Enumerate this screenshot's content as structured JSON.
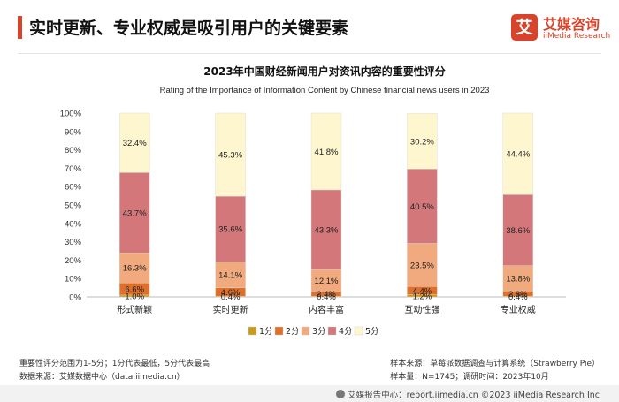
{
  "header": {
    "title": "实时更新、专业权威是吸引用户的关键要素",
    "logo_mark": "艾",
    "logo_cn": "艾媒咨询",
    "logo_en": "iiMedia Research"
  },
  "chart_data": {
    "type": "bar",
    "stacked": true,
    "title": "2023年中国财经新闻用户对资讯内容的重要性评分",
    "subtitle": "Rating of the Importance of Information Content by Chinese financial news users in 2023",
    "categories": [
      "形式新颖",
      "实时更新",
      "内容丰富",
      "互动性强",
      "专业权威"
    ],
    "series": [
      {
        "name": "1分",
        "color": "#c99a1d",
        "values": [
          1.0,
          0.4,
          0.4,
          1.2,
          0.4
        ]
      },
      {
        "name": "2分",
        "color": "#e06f2a",
        "values": [
          6.6,
          4.6,
          2.4,
          4.4,
          2.8
        ]
      },
      {
        "name": "3分",
        "color": "#f0aa7d",
        "values": [
          16.3,
          14.1,
          12.1,
          23.5,
          13.8
        ]
      },
      {
        "name": "4分",
        "color": "#d4777b",
        "values": [
          43.7,
          35.6,
          43.3,
          40.5,
          38.6
        ]
      },
      {
        "name": "5分",
        "color": "#fdf6cf",
        "values": [
          32.4,
          45.3,
          41.8,
          30.2,
          44.4
        ]
      }
    ],
    "ylim": [
      0,
      100
    ],
    "yticks": [
      "0%",
      "10%",
      "20%",
      "30%",
      "40%",
      "50%",
      "60%",
      "70%",
      "80%",
      "90%",
      "100%"
    ],
    "grid": false,
    "legend": "bottom",
    "unit": "%"
  },
  "footer": {
    "note": "重要性评分范围为1-5分；1分代表最低，5分代表最高",
    "data_source": "数据来源：艾媒数据中心（data.iimedia.cn）",
    "sample_source": "样本来源：草莓派数据调查与计算系统（Strawberry Pie）",
    "sample_info": "样本量：N=1745；调研时间：2023年10月",
    "copyright": "艾媒报告中心：report.iimedia.cn ©2023 iiMedia Research Inc"
  }
}
